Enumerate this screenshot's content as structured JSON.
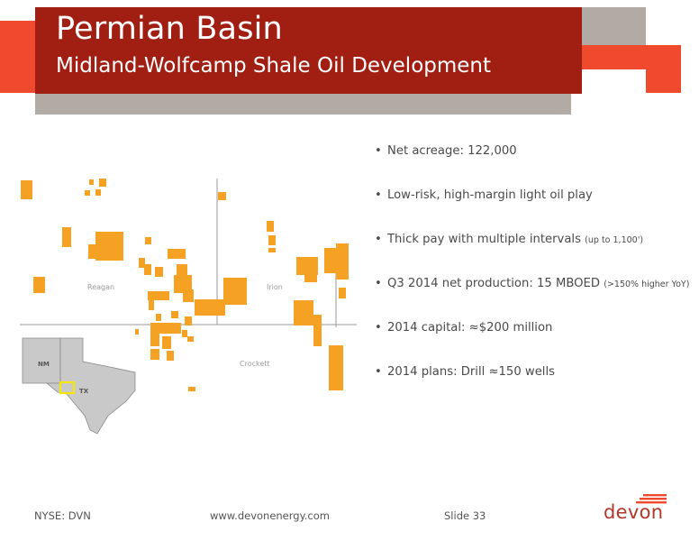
{
  "slide": {
    "title": "Permian Basin",
    "subtitle": "Midland-Wolfcamp Shale Oil Development",
    "colors": {
      "title_bg": "#a11f12",
      "accent_red": "#f04a2e",
      "accent_gray": "#b2aaa5",
      "acreage": "#f4a124",
      "inset_highlight": "#f5e60a"
    }
  },
  "bullets": [
    {
      "text": "Net acreage: 122,000",
      "note": ""
    },
    {
      "text": "Low-risk, high-margin light oil play",
      "note": ""
    },
    {
      "text": "Thick pay with multiple intervals",
      "note": "(up to 1,100')"
    },
    {
      "text": "Q3 2014 net production: 15 MBOED",
      "note": "(>150% higher YoY)"
    },
    {
      "text": "2014 capital: ≈$200 million",
      "note": ""
    },
    {
      "text": "2014 plans: Drill ≈150 wells",
      "note": ""
    }
  ],
  "map": {
    "county_labels": {
      "reagan": "Reagan",
      "irion": "Irion",
      "crockett": "Crockett"
    },
    "inset_labels": {
      "nm": "NM",
      "tx": "TX"
    }
  },
  "footer": {
    "ticker": "NYSE: DVN",
    "website": "www.devonenergy.com",
    "slide_number": "Slide 33",
    "logo": "devon"
  }
}
